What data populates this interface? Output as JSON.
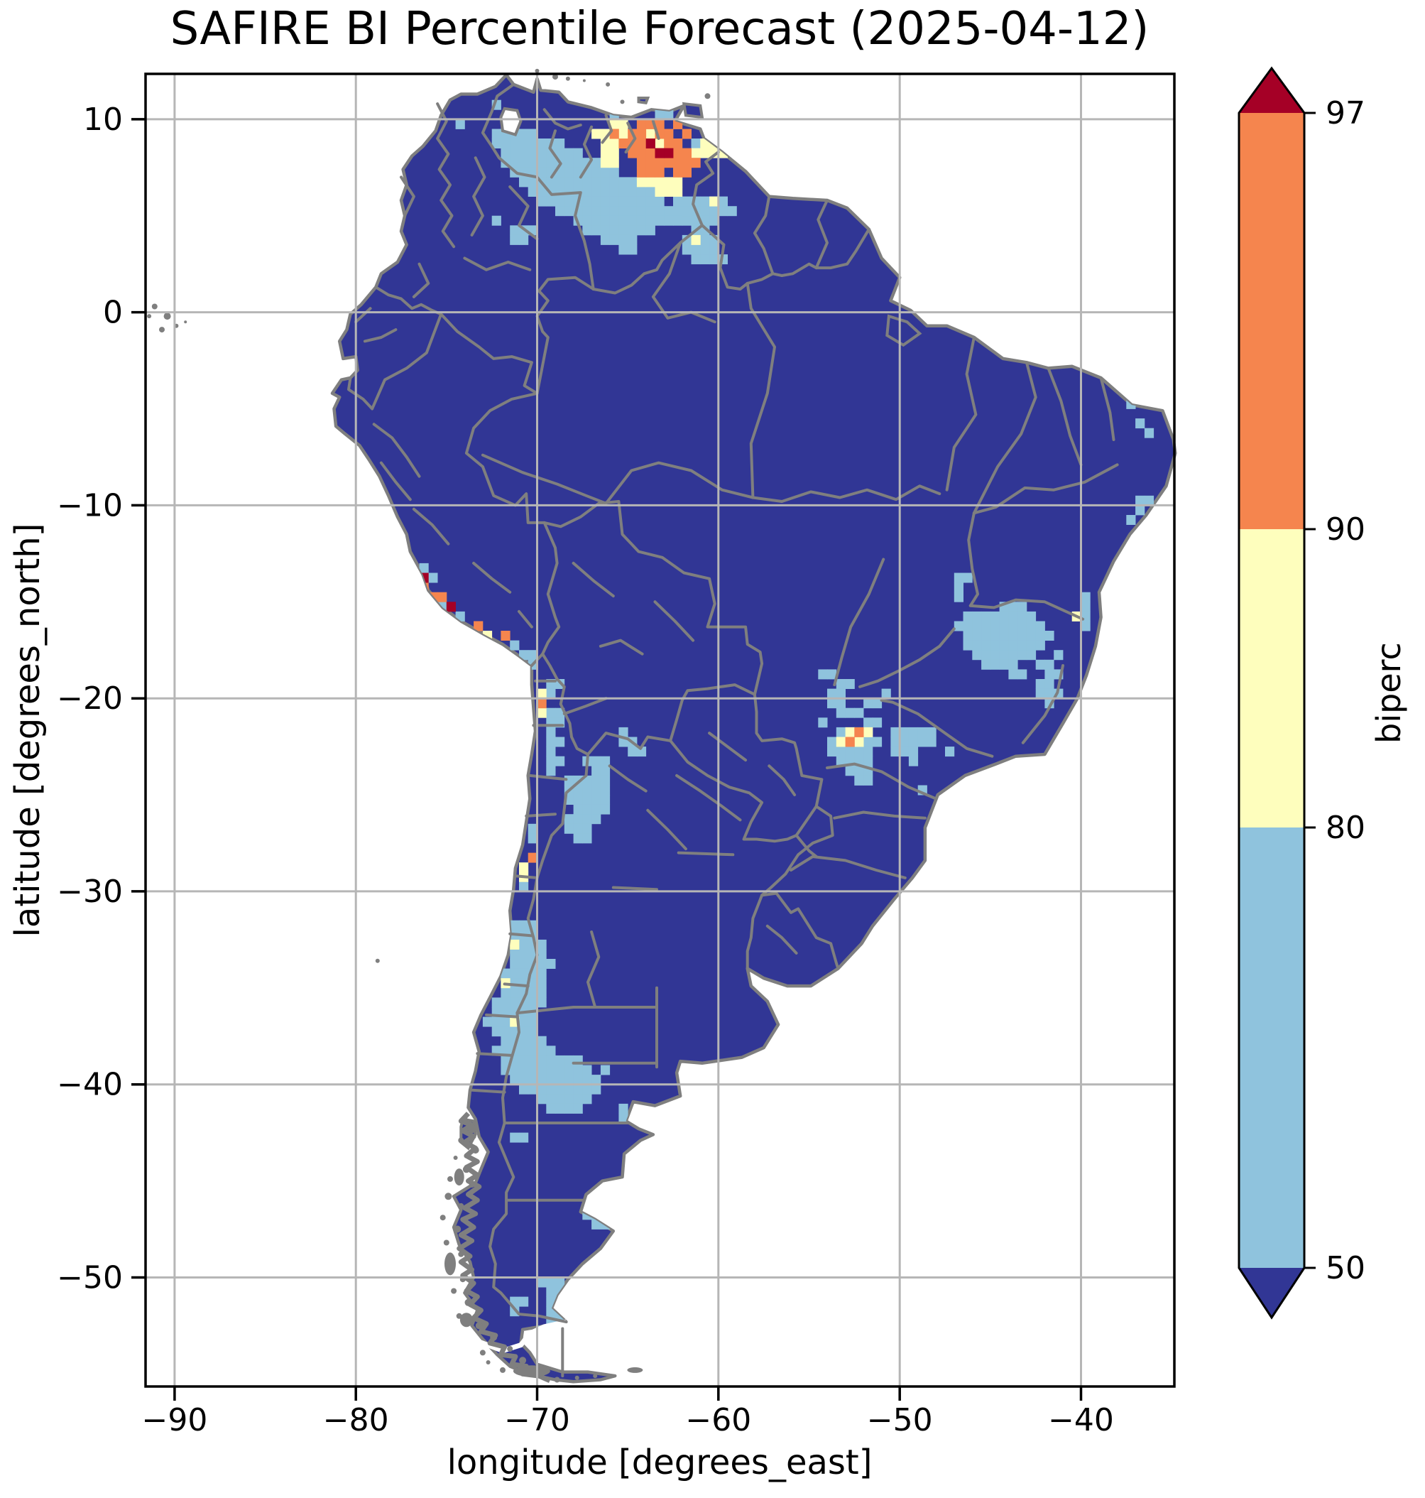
{
  "figure": {
    "title": "SAFIRE BI Percentile Forecast (2025-04-12)",
    "background": "#ffffff"
  },
  "axes": {
    "x_label": "longitude [degrees_east]",
    "y_label": "latitude [degrees_north]",
    "x_ticks": [
      {
        "value": -90,
        "label": "−90"
      },
      {
        "value": -80,
        "label": "−80"
      },
      {
        "value": -70,
        "label": "−70"
      },
      {
        "value": -60,
        "label": "−60"
      },
      {
        "value": -50,
        "label": "−50"
      },
      {
        "value": -40,
        "label": "−40"
      }
    ],
    "y_ticks": [
      {
        "value": 10,
        "label": "10"
      },
      {
        "value": 0,
        "label": "0"
      },
      {
        "value": -10,
        "label": "−10"
      },
      {
        "value": -20,
        "label": "−20"
      },
      {
        "value": -30,
        "label": "−30"
      },
      {
        "value": -40,
        "label": "−40"
      },
      {
        "value": -50,
        "label": "−50"
      }
    ]
  },
  "colorbar": {
    "label": "biperc",
    "ticks": [
      {
        "value": 97,
        "label": "97"
      },
      {
        "value": 90,
        "label": "90"
      },
      {
        "value": 80,
        "label": "80"
      },
      {
        "value": 50,
        "label": "50"
      }
    ],
    "boundaries": [
      50,
      80,
      90,
      97
    ],
    "segments": [
      {
        "range": "< 50",
        "color": "#313695"
      },
      {
        "range": "50–80",
        "color": "#8FC3DD"
      },
      {
        "range": "80–90",
        "color": "#FEFEBD"
      },
      {
        "range": "90–97",
        "color": "#F5854E"
      },
      {
        "range": "> 97",
        "color": "#A50026"
      }
    ]
  },
  "chart_data": {
    "type": "heatmap",
    "title": "SAFIRE BI Percentile Forecast (2025-04-12)",
    "variable": "biperc",
    "date": "2025-04-12",
    "region": "South America",
    "xlabel": "longitude [degrees_east]",
    "ylabel": "latitude [degrees_north]",
    "extent": {
      "lon_min": -91.6,
      "lon_max": -34.85,
      "lat_min": -55.65,
      "lat_max": 12.35
    },
    "cell_size_deg": 0.5,
    "levels": [
      50,
      80,
      90,
      97
    ],
    "level_colors": {
      "base": "#313695",
      "p50": "#8FC3DD",
      "p80": "#FEFEBD",
      "p90": "#F5854E",
      "p97": "#A50026"
    },
    "map_colors": {
      "land_base": "#313695",
      "boundaries": "#7F7F7F",
      "gridlines": "#B6B6B6",
      "ocean": "#FFFFFF",
      "frame": "#000000"
    },
    "grid": true,
    "cells": {
      "p50": {
        "rows": [
          [
            10,
            -72,
            -71.5
          ],
          [
            9.5,
            -72.5,
            -70.5
          ],
          [
            9,
            -72.5,
            -69
          ],
          [
            8.5,
            -72,
            -68
          ],
          [
            8,
            -72,
            -67
          ],
          [
            7.5,
            -71.5,
            -66
          ],
          [
            7,
            -71,
            -65
          ],
          [
            6.5,
            -70.5,
            -64
          ],
          [
            6,
            -70,
            -63.5
          ],
          [
            6,
            -62.5,
            -60
          ],
          [
            5.5,
            -69,
            -59.5
          ],
          [
            5,
            -68,
            -60.5
          ],
          [
            4.5,
            -71.5,
            -70.5
          ],
          [
            4.5,
            -67.5,
            -64
          ],
          [
            4,
            -71.5,
            -71
          ],
          [
            4,
            -66.5,
            -65
          ],
          [
            3.5,
            -65.5,
            -65
          ],
          [
            4.5,
            -61.5,
            -61
          ],
          [
            4,
            -62,
            -60.5
          ],
          [
            3.5,
            -62,
            -60.5
          ],
          [
            3,
            -61.5,
            -60.5
          ],
          [
            -13.5,
            -47,
            -46.5
          ],
          [
            -14,
            -47,
            -47
          ],
          [
            -14.5,
            -47,
            -47
          ],
          [
            -14.5,
            -40,
            -40
          ],
          [
            -15,
            -44.5,
            -43.5
          ],
          [
            -15,
            -40,
            -40
          ],
          [
            -15.5,
            -46.5,
            -43
          ],
          [
            -15.5,
            -40,
            -40
          ],
          [
            -16,
            -47,
            -42.5
          ],
          [
            -16,
            -40,
            -40
          ],
          [
            -16.5,
            -46.5,
            -42
          ],
          [
            -17,
            -46.5,
            -42.5
          ],
          [
            -17.5,
            -46,
            -43
          ],
          [
            -17.5,
            -41.5,
            -41.5
          ],
          [
            -18,
            -45.5,
            -44
          ],
          [
            -18,
            -42.5,
            -42
          ],
          [
            -18.5,
            -44,
            -43.5
          ],
          [
            -18.5,
            -42,
            -41.5
          ],
          [
            -19,
            -42.5,
            -42
          ],
          [
            -19.5,
            -42.5,
            -41.5
          ],
          [
            -20,
            -42,
            -42
          ],
          [
            -18.5,
            -54.5,
            -54
          ],
          [
            -19,
            -53.5,
            -53
          ],
          [
            -19.5,
            -54,
            -53.5
          ],
          [
            -19.5,
            -51,
            -51
          ],
          [
            -20,
            -54,
            -53.5
          ],
          [
            -20,
            -52,
            -51.5
          ],
          [
            -20.5,
            -53.5,
            -52.5
          ],
          [
            -21,
            -54.5,
            -54.5
          ],
          [
            -21,
            -52,
            -51.5
          ],
          [
            -21.5,
            -53.5,
            -52
          ],
          [
            -21.5,
            -50.5,
            -48.5
          ],
          [
            -22,
            -54,
            -51.5
          ],
          [
            -22,
            -50.5,
            -48.5
          ],
          [
            -22.5,
            -54,
            -52
          ],
          [
            -22.5,
            -50.5,
            -49.5
          ],
          [
            -22.5,
            -47.5,
            -47.5
          ],
          [
            -23,
            -53.5,
            -52
          ],
          [
            -23,
            -49.5,
            -49.5
          ],
          [
            -23.5,
            -53,
            -52
          ],
          [
            -24,
            -52.5,
            -52
          ],
          [
            -19,
            -69.5,
            -69
          ],
          [
            -19.5,
            -69.5,
            -69.5
          ],
          [
            -20.5,
            -69.5,
            -69
          ],
          [
            -21,
            -69.5,
            -69
          ],
          [
            -21.5,
            -69.5,
            -69.5
          ],
          [
            -21.5,
            -65.5,
            -65.5
          ],
          [
            -22,
            -69.5,
            -69
          ],
          [
            -22,
            -65.5,
            -65
          ],
          [
            -22.5,
            -69.5,
            -69.5
          ],
          [
            -23,
            -69.5,
            -69
          ],
          [
            -23,
            -67.5,
            -66.5
          ],
          [
            -23.5,
            -69.5,
            -69.5
          ],
          [
            -23.5,
            -67,
            -66.5
          ],
          [
            -24,
            -68.5,
            -66.5
          ],
          [
            -24.5,
            -68.5,
            -66.5
          ],
          [
            -25,
            -68.5,
            -66.5
          ],
          [
            -25.5,
            -68,
            -66.5
          ],
          [
            -26,
            -68.5,
            -67
          ],
          [
            -26.5,
            -68.5,
            -67.5
          ],
          [
            -27,
            -68,
            -67.5
          ],
          [
            -31.5,
            -71.5,
            -70.5
          ],
          [
            -32,
            -71.5,
            -70.5
          ],
          [
            -32.5,
            -71,
            -70
          ],
          [
            -33,
            -71.5,
            -70
          ],
          [
            -33.5,
            -71.5,
            -69.5
          ],
          [
            -34,
            -72,
            -70
          ],
          [
            -34.5,
            -72,
            -70
          ],
          [
            -35,
            -72,
            -70
          ],
          [
            -35.5,
            -72.5,
            -70
          ],
          [
            -36,
            -72.5,
            -70.5
          ],
          [
            -36.5,
            -73,
            -70.5
          ],
          [
            -37,
            -72.5,
            -70.5
          ],
          [
            -37.5,
            -72,
            -70
          ],
          [
            -38,
            -72.5,
            -69.5
          ],
          [
            -38.5,
            -72,
            -68
          ],
          [
            -39,
            -72,
            -67.5
          ],
          [
            -39.5,
            -71.5,
            -67
          ],
          [
            -40,
            -71,
            -67
          ],
          [
            -40.5,
            -70,
            -67.5
          ],
          [
            -41,
            -69.5,
            -68
          ],
          [
            -46.5,
            -67.5,
            -67
          ],
          [
            -47,
            -67,
            -66.5
          ],
          [
            -50,
            -70,
            -69
          ],
          [
            -50.5,
            -69.5,
            -68.5
          ],
          [
            -51,
            -71.5,
            -71
          ],
          [
            -51,
            -69.5,
            -69
          ],
          [
            -51.5,
            -71.5,
            -71.5
          ],
          [
            -51.5,
            -69.5,
            -68.5
          ],
          [
            -52,
            -69.5,
            -69
          ],
          [
            -52.5,
            -70,
            -69
          ],
          [
            -53,
            -69.5,
            -68.5
          ],
          [
            -53.5,
            -69,
            -68
          ],
          [
            -54,
            -68.5,
            -68
          ]
        ],
        "singles": [
          [
            -74.5,
            10
          ],
          [
            -72.5,
            11
          ],
          [
            -66,
            10.5
          ],
          [
            -63.5,
            10.5
          ],
          [
            -63,
            10.5
          ],
          [
            -61.5,
            9
          ],
          [
            -72.5,
            5
          ],
          [
            -62,
            5.5
          ],
          [
            -60,
            3
          ],
          [
            -37.5,
            -4.5
          ],
          [
            -37,
            -5.5
          ],
          [
            -36.5,
            -6
          ],
          [
            -36.5,
            -9.5
          ],
          [
            -37,
            -9.5
          ],
          [
            -37,
            -10
          ],
          [
            -37.5,
            -10.5
          ],
          [
            -49,
            -24.5
          ],
          [
            -76.5,
            -13
          ],
          [
            -76,
            -13.5
          ],
          [
            -75.5,
            -15
          ],
          [
            -74.5,
            -15.5
          ],
          [
            -71.5,
            -17
          ],
          [
            -71,
            -17.5
          ],
          [
            -70.5,
            -17.5
          ],
          [
            -70.5,
            -18
          ],
          [
            -65,
            -22.5
          ],
          [
            -64.5,
            -22.5
          ],
          [
            -71,
            -29.5
          ],
          [
            -70.5,
            -27
          ],
          [
            -70.5,
            -26.5
          ],
          [
            -65.5,
            -41
          ],
          [
            -65.5,
            -41.5
          ],
          [
            -71.5,
            -42.5
          ],
          [
            -71,
            -42.5
          ],
          [
            -66.5,
            -39
          ]
        ]
      },
      "p80": {
        "rows": [
          [
            10,
            -66,
            -65.5
          ],
          [
            9.5,
            -67,
            -65
          ],
          [
            9,
            -66.5,
            -65.5
          ],
          [
            9,
            -61,
            -60
          ],
          [
            8.5,
            -66.5,
            -66
          ],
          [
            8.5,
            -61.5,
            -60
          ],
          [
            8,
            -66.5,
            -66
          ],
          [
            7,
            -64.5,
            -62.5
          ],
          [
            6.5,
            -63.5,
            -62.5
          ]
        ],
        "singles": [
          [
            -64,
            9.5
          ],
          [
            -63.5,
            9
          ],
          [
            -60.5,
            6
          ],
          [
            -61.5,
            4
          ],
          [
            -40.5,
            -15.5
          ],
          [
            -53,
            -21.5
          ],
          [
            -52,
            -21.5
          ],
          [
            -53.5,
            -22
          ],
          [
            -52.5,
            -22
          ],
          [
            -70,
            -19.5
          ],
          [
            -70,
            -20.5
          ],
          [
            -73,
            -16.5
          ],
          [
            -71,
            -28.5
          ],
          [
            -71,
            -29
          ],
          [
            -71.5,
            -32.5
          ],
          [
            -72,
            -34.5
          ],
          [
            -71.5,
            -36.5
          ]
        ]
      },
      "p90": {
        "rows": [
          [
            10,
            -64.5,
            -63.5
          ],
          [
            9.5,
            -65,
            -64.5
          ],
          [
            9.5,
            -63.5,
            -63
          ],
          [
            9,
            -65.5,
            -64
          ],
          [
            9,
            -63,
            -62.5
          ],
          [
            8.5,
            -65,
            -62
          ],
          [
            8,
            -64.5,
            -61.5
          ],
          [
            7.5,
            -64.5,
            -63.5
          ],
          [
            7.5,
            -62.5,
            -62
          ]
        ],
        "singles": [
          [
            -62.5,
            10
          ],
          [
            -62,
            9.5
          ],
          [
            -66,
            9.5
          ],
          [
            -76.5,
            -14
          ],
          [
            -76,
            -14.5
          ],
          [
            -75.5,
            -14.5
          ],
          [
            -73.5,
            -16
          ],
          [
            -72,
            -16.5
          ],
          [
            -70,
            -20
          ],
          [
            -70.5,
            -28
          ],
          [
            -52.5,
            -21.5
          ],
          [
            -53,
            -22
          ]
        ]
      },
      "p97": {
        "rows": [],
        "singles": [
          [
            -64,
            9
          ],
          [
            -63.5,
            8.5
          ],
          [
            -63,
            8.5
          ],
          [
            -76.5,
            -13.5
          ],
          [
            -75,
            -15
          ]
        ]
      }
    }
  }
}
